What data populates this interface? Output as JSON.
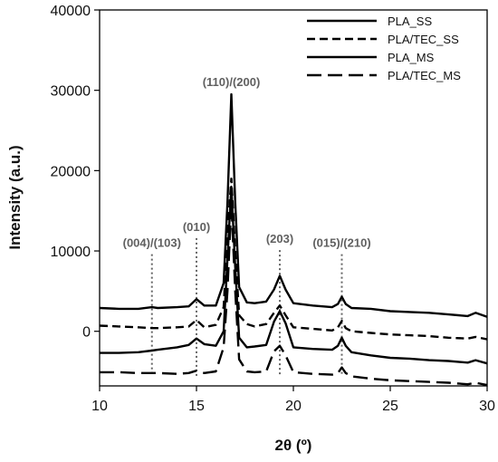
{
  "chart_data": {
    "type": "line",
    "xlabel": "2θ (º)",
    "ylabel": "Intensity (a.u.)",
    "xlim": [
      10,
      30
    ],
    "ylim": [
      -6800,
      40000
    ],
    "xticks": [
      10,
      15,
      20,
      25,
      30
    ],
    "yticks": [
      0,
      10000,
      20000,
      30000,
      40000
    ],
    "grid": false,
    "legend_position": "top-right",
    "peaks": [
      {
        "label": "(004)/(103)",
        "x": 12.7
      },
      {
        "label": "(010)",
        "x": 15.0
      },
      {
        "label": "(110)/(200)",
        "x": 16.8
      },
      {
        "label": "(203)",
        "x": 19.3
      },
      {
        "label": "(015)/(210)",
        "x": 22.5
      }
    ],
    "series": [
      {
        "name": "PLA_SS",
        "style": "solid",
        "color": "#000000",
        "x": [
          10,
          11,
          12,
          12.7,
          13,
          14,
          14.6,
          15,
          15.4,
          16,
          16.4,
          16.6,
          16.8,
          17.0,
          17.2,
          17.6,
          18,
          18.6,
          19.0,
          19.3,
          19.6,
          20,
          21,
          22,
          22.3,
          22.5,
          22.7,
          23,
          24,
          25,
          26,
          27,
          28,
          29,
          29.4,
          30
        ],
        "y": [
          2900,
          2800,
          2800,
          3000,
          2900,
          3000,
          3100,
          4000,
          3200,
          3200,
          6000,
          16000,
          29500,
          16000,
          5500,
          3600,
          3500,
          3700,
          5200,
          6900,
          5200,
          3500,
          3200,
          3000,
          3400,
          4300,
          3400,
          2900,
          2800,
          2500,
          2400,
          2300,
          2100,
          1900,
          2300,
          1800
        ]
      },
      {
        "name": "PLA/TEC_SS",
        "style": "dashed",
        "color": "#000000",
        "x": [
          10,
          11,
          12,
          12.7,
          13,
          14,
          14.6,
          15,
          15.4,
          16,
          16.4,
          16.6,
          16.8,
          17.0,
          17.2,
          17.6,
          18,
          18.6,
          19.0,
          19.3,
          19.6,
          20,
          21,
          22,
          22.3,
          22.5,
          22.7,
          23,
          24,
          25,
          26,
          27,
          28,
          29,
          29.4,
          30
        ],
        "y": [
          700,
          600,
          500,
          400,
          400,
          500,
          600,
          1400,
          500,
          800,
          3000,
          12000,
          19000,
          10000,
          2000,
          900,
          600,
          900,
          2300,
          3200,
          2000,
          500,
          300,
          100,
          500,
          1300,
          400,
          0,
          -200,
          -400,
          -500,
          -600,
          -800,
          -900,
          -700,
          -1000
        ]
      },
      {
        "name": "PLA_MS",
        "style": "solid",
        "color": "#000000",
        "x": [
          10,
          11,
          12,
          12.7,
          13,
          14,
          14.6,
          15,
          15.4,
          16,
          16.4,
          16.6,
          16.8,
          17.0,
          17.2,
          17.6,
          18,
          18.6,
          19.0,
          19.3,
          19.6,
          20,
          21,
          22,
          22.3,
          22.5,
          22.7,
          23,
          24,
          25,
          26,
          27,
          28,
          29,
          29.4,
          30
        ],
        "y": [
          -2700,
          -2700,
          -2600,
          -2400,
          -2300,
          -2000,
          -1700,
          -900,
          -1600,
          -1800,
          0,
          9000,
          18000,
          8000,
          -800,
          -2000,
          -1900,
          -1700,
          1200,
          2500,
          1000,
          -2000,
          -2200,
          -2300,
          -1800,
          -800,
          -1800,
          -2600,
          -3000,
          -3300,
          -3400,
          -3600,
          -3700,
          -3900,
          -3600,
          -4000
        ]
      },
      {
        "name": "PLA/TEC_MS",
        "style": "long-dashed",
        "color": "#000000",
        "x": [
          10,
          11,
          12,
          12.7,
          13,
          14,
          14.6,
          15,
          15.4,
          16,
          16.4,
          16.6,
          16.8,
          17.0,
          17.2,
          17.6,
          18,
          18.6,
          19.0,
          19.3,
          19.6,
          20,
          21,
          22,
          22.3,
          22.5,
          22.7,
          23,
          24,
          25,
          26,
          27,
          28,
          29,
          29.4,
          30
        ],
        "y": [
          -5100,
          -5100,
          -5200,
          -5200,
          -5200,
          -5300,
          -5200,
          -4900,
          -5200,
          -5000,
          -2000,
          5000,
          16000,
          5000,
          -3500,
          -5000,
          -5100,
          -5000,
          -2500,
          -1800,
          -3000,
          -5100,
          -5300,
          -5400,
          -5200,
          -4500,
          -5200,
          -5600,
          -5900,
          -6100,
          -6200,
          -6300,
          -6400,
          -6600,
          -6400,
          -6700
        ]
      }
    ]
  }
}
